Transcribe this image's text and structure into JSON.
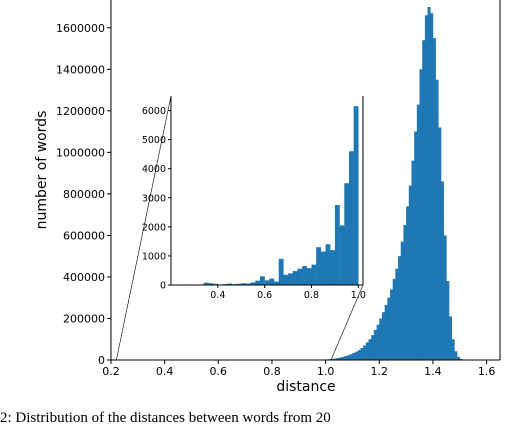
{
  "chart_data": [
    {
      "type": "bar",
      "xlabel": "distance",
      "ylabel": "number of words",
      "xlim": [
        0.2,
        1.65
      ],
      "ylim": [
        0,
        1700000
      ],
      "x_ticks": [
        0.2,
        0.4,
        0.6,
        0.8,
        1.0,
        1.2,
        1.4,
        1.6
      ],
      "x_tick_labels": [
        "0.2",
        "0.4",
        "0.6",
        "0.8",
        "1.0",
        "1.2",
        "1.4",
        "1.6"
      ],
      "y_ticks": [
        0,
        200000,
        400000,
        600000,
        800000,
        1000000,
        1200000,
        1400000,
        1600000
      ],
      "y_tick_labels": [
        "0",
        "200000",
        "400000",
        "600000",
        "800000",
        "1000000",
        "1200000",
        "1400000",
        "1600000"
      ],
      "bar_color": "#1f77b4",
      "bin_width": 0.01,
      "bins": [
        {
          "x": 1.0,
          "y": 3000
        },
        {
          "x": 1.01,
          "y": 4000
        },
        {
          "x": 1.02,
          "y": 5000
        },
        {
          "x": 1.03,
          "y": 7000
        },
        {
          "x": 1.04,
          "y": 9000
        },
        {
          "x": 1.05,
          "y": 12000
        },
        {
          "x": 1.06,
          "y": 15000
        },
        {
          "x": 1.07,
          "y": 19000
        },
        {
          "x": 1.08,
          "y": 23000
        },
        {
          "x": 1.09,
          "y": 28000
        },
        {
          "x": 1.1,
          "y": 34000
        },
        {
          "x": 1.11,
          "y": 40000
        },
        {
          "x": 1.12,
          "y": 48000
        },
        {
          "x": 1.13,
          "y": 58000
        },
        {
          "x": 1.14,
          "y": 70000
        },
        {
          "x": 1.15,
          "y": 85000
        },
        {
          "x": 1.16,
          "y": 100000
        },
        {
          "x": 1.17,
          "y": 120000
        },
        {
          "x": 1.18,
          "y": 145000
        },
        {
          "x": 1.19,
          "y": 170000
        },
        {
          "x": 1.2,
          "y": 200000
        },
        {
          "x": 1.21,
          "y": 230000
        },
        {
          "x": 1.22,
          "y": 265000
        },
        {
          "x": 1.23,
          "y": 300000
        },
        {
          "x": 1.24,
          "y": 340000
        },
        {
          "x": 1.25,
          "y": 390000
        },
        {
          "x": 1.26,
          "y": 440000
        },
        {
          "x": 1.27,
          "y": 500000
        },
        {
          "x": 1.28,
          "y": 570000
        },
        {
          "x": 1.29,
          "y": 650000
        },
        {
          "x": 1.3,
          "y": 740000
        },
        {
          "x": 1.31,
          "y": 840000
        },
        {
          "x": 1.32,
          "y": 960000
        },
        {
          "x": 1.33,
          "y": 1100000
        },
        {
          "x": 1.34,
          "y": 1230000
        },
        {
          "x": 1.35,
          "y": 1400000
        },
        {
          "x": 1.36,
          "y": 1540000
        },
        {
          "x": 1.37,
          "y": 1660000
        },
        {
          "x": 1.38,
          "y": 1700000
        },
        {
          "x": 1.39,
          "y": 1670000
        },
        {
          "x": 1.4,
          "y": 1550000
        },
        {
          "x": 1.41,
          "y": 1350000
        },
        {
          "x": 1.42,
          "y": 1120000
        },
        {
          "x": 1.43,
          "y": 860000
        },
        {
          "x": 1.44,
          "y": 600000
        },
        {
          "x": 1.45,
          "y": 380000
        },
        {
          "x": 1.46,
          "y": 210000
        },
        {
          "x": 1.47,
          "y": 100000
        },
        {
          "x": 1.48,
          "y": 42000
        },
        {
          "x": 1.49,
          "y": 15000
        },
        {
          "x": 1.5,
          "y": 5000
        }
      ]
    },
    {
      "type": "bar",
      "role": "inset",
      "xlim": [
        0.2,
        1.02
      ],
      "ylim": [
        0,
        6500
      ],
      "x_ticks": [
        0.4,
        0.6,
        0.8,
        1.0
      ],
      "x_tick_labels": [
        "0.4",
        "0.6",
        "0.8",
        "1.0"
      ],
      "y_ticks": [
        0,
        1000,
        2000,
        3000,
        4000,
        5000,
        6000
      ],
      "y_tick_labels": [
        "0",
        "1000",
        "2000",
        "3000",
        "4000",
        "5000",
        "6000"
      ],
      "bar_color": "#1f77b4",
      "bin_width": 0.02,
      "bins": [
        {
          "x": 0.22,
          "y": 20
        },
        {
          "x": 0.24,
          "y": 0
        },
        {
          "x": 0.26,
          "y": 10
        },
        {
          "x": 0.28,
          "y": 0
        },
        {
          "x": 0.3,
          "y": 0
        },
        {
          "x": 0.32,
          "y": 20
        },
        {
          "x": 0.34,
          "y": 80
        },
        {
          "x": 0.36,
          "y": 60
        },
        {
          "x": 0.38,
          "y": 40
        },
        {
          "x": 0.4,
          "y": 20
        },
        {
          "x": 0.42,
          "y": 30
        },
        {
          "x": 0.44,
          "y": 50
        },
        {
          "x": 0.46,
          "y": 30
        },
        {
          "x": 0.48,
          "y": 40
        },
        {
          "x": 0.5,
          "y": 60
        },
        {
          "x": 0.52,
          "y": 50
        },
        {
          "x": 0.54,
          "y": 90
        },
        {
          "x": 0.56,
          "y": 150
        },
        {
          "x": 0.58,
          "y": 300
        },
        {
          "x": 0.6,
          "y": 160
        },
        {
          "x": 0.62,
          "y": 220
        },
        {
          "x": 0.64,
          "y": 120
        },
        {
          "x": 0.66,
          "y": 900
        },
        {
          "x": 0.68,
          "y": 350
        },
        {
          "x": 0.7,
          "y": 400
        },
        {
          "x": 0.72,
          "y": 480
        },
        {
          "x": 0.74,
          "y": 560
        },
        {
          "x": 0.76,
          "y": 650
        },
        {
          "x": 0.78,
          "y": 580
        },
        {
          "x": 0.8,
          "y": 700
        },
        {
          "x": 0.82,
          "y": 1300
        },
        {
          "x": 0.84,
          "y": 1150
        },
        {
          "x": 0.86,
          "y": 1400
        },
        {
          "x": 0.88,
          "y": 1200
        },
        {
          "x": 0.9,
          "y": 2750
        },
        {
          "x": 0.92,
          "y": 2050
        },
        {
          "x": 0.94,
          "y": 3500
        },
        {
          "x": 0.96,
          "y": 4600
        },
        {
          "x": 0.98,
          "y": 6150
        }
      ]
    }
  ],
  "caption": {
    "text": "2: Distribution of the distances between words from 20"
  }
}
